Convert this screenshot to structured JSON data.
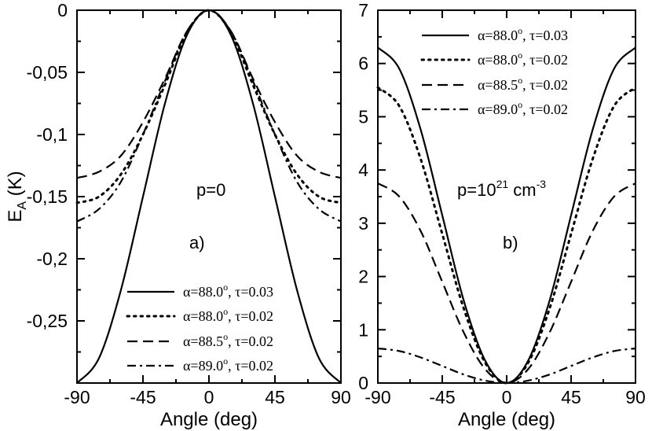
{
  "chart_data": [
    {
      "id": "a",
      "type": "line",
      "xlabel": "Angle (deg)",
      "ylabel": "E_A (K)",
      "ylabel_main": "E",
      "ylabel_sub": "A",
      "ylabel_unit": " (K)",
      "xlim": [
        -90,
        90
      ],
      "ylim": [
        -0.3,
        0
      ],
      "xticks": [
        -90,
        -45,
        0,
        45,
        90
      ],
      "xtick_labels": [
        "-90",
        "-45",
        "0",
        "45",
        "90"
      ],
      "yticks": [
        0,
        -0.05,
        -0.1,
        -0.15,
        -0.2,
        -0.25
      ],
      "ytick_labels": [
        "0",
        "-0,05",
        "-0,1",
        "-0,15",
        "-0,2",
        "-0,25"
      ],
      "annotations": [
        "p=0",
        "a)"
      ],
      "legend_position": "bottom-right",
      "series": [
        {
          "name": "α=88.0°, τ=0.03",
          "legend_main": "α=88.0",
          "legend_sup": "o",
          "legend_tail": ", τ=0.03",
          "style": "solid",
          "x": [
            -90,
            -75,
            -60,
            -45,
            -30,
            -15,
            0,
            15,
            30,
            45,
            60,
            75,
            90
          ],
          "y": [
            -0.3,
            -0.28,
            -0.225,
            -0.15,
            -0.075,
            -0.02,
            0,
            -0.02,
            -0.075,
            -0.15,
            -0.225,
            -0.28,
            -0.3
          ]
        },
        {
          "name": "α=88.0°, τ=0.02",
          "legend_main": "α=88.0",
          "legend_sup": "o",
          "legend_tail": ", τ=0.02",
          "style": "dotted",
          "x": [
            -90,
            -75,
            -60,
            -45,
            -30,
            -15,
            0,
            15,
            30,
            45,
            60,
            75,
            90
          ],
          "y": [
            -0.155,
            -0.15,
            -0.132,
            -0.1,
            -0.06,
            -0.018,
            0,
            -0.018,
            -0.06,
            -0.1,
            -0.132,
            -0.15,
            -0.155
          ]
        },
        {
          "name": "α=88.5°, τ=0.02",
          "legend_main": "α=88.5",
          "legend_sup": "o",
          "legend_tail": ", τ=0.02",
          "style": "dashed",
          "x": [
            -90,
            -75,
            -60,
            -45,
            -30,
            -15,
            0,
            15,
            30,
            45,
            60,
            75,
            90
          ],
          "y": [
            -0.135,
            -0.13,
            -0.117,
            -0.09,
            -0.055,
            -0.017,
            0,
            -0.017,
            -0.055,
            -0.09,
            -0.117,
            -0.13,
            -0.135
          ]
        },
        {
          "name": "α=89.0°, τ=0.02",
          "legend_main": "α=89.0",
          "legend_sup": "o",
          "legend_tail": ", τ=0.02",
          "style": "dashdot",
          "x": [
            -90,
            -75,
            -60,
            -45,
            -30,
            -15,
            0,
            15,
            30,
            45,
            60,
            75,
            90
          ],
          "y": [
            -0.17,
            -0.16,
            -0.138,
            -0.1,
            -0.057,
            -0.017,
            0,
            -0.017,
            -0.057,
            -0.1,
            -0.138,
            -0.16,
            -0.17
          ]
        }
      ]
    },
    {
      "id": "b",
      "type": "line",
      "xlabel": "Angle (deg)",
      "ylabel": "",
      "xlim": [
        -90,
        90
      ],
      "ylim": [
        0,
        7
      ],
      "xticks": [
        -90,
        -45,
        0,
        45,
        90
      ],
      "xtick_labels": [
        "-90",
        "-45",
        "0",
        "45",
        "90"
      ],
      "yticks": [
        0,
        1,
        2,
        3,
        4,
        5,
        6,
        7
      ],
      "ytick_labels": [
        "0",
        "1",
        "2",
        "3",
        "4",
        "5",
        "6",
        "7"
      ],
      "annotation_p_main": "p=10",
      "annotation_p_exp": "21",
      "annotation_p_unit": " cm",
      "annotation_p_unit_exp": "-3",
      "annotation_label": "b)",
      "legend_position": "top-right",
      "series": [
        {
          "name": "α=88.0°, τ=0.03",
          "legend_main": "α=88.0",
          "legend_sup": "o",
          "legend_tail": ", τ=0.03",
          "style": "solid",
          "x": [
            -90,
            -75,
            -60,
            -45,
            -30,
            -15,
            0,
            15,
            30,
            45,
            60,
            75,
            90
          ],
          "y": [
            6.3,
            5.9,
            4.75,
            3.15,
            1.55,
            0.42,
            0,
            0.42,
            1.55,
            3.15,
            4.75,
            5.9,
            6.3
          ]
        },
        {
          "name": "α=88.0°, τ=0.02",
          "legend_main": "α=88.0",
          "legend_sup": "o",
          "legend_tail": ", τ=0.02",
          "style": "dotted",
          "x": [
            -90,
            -75,
            -60,
            -45,
            -30,
            -15,
            0,
            15,
            30,
            45,
            60,
            75,
            90
          ],
          "y": [
            5.55,
            5.2,
            4.2,
            2.8,
            1.4,
            0.38,
            0,
            0.38,
            1.4,
            2.8,
            4.2,
            5.2,
            5.55
          ]
        },
        {
          "name": "α=88.5°, τ=0.02",
          "legend_main": "α=88.5",
          "legend_sup": "o",
          "legend_tail": ", τ=0.02",
          "style": "dashed",
          "x": [
            -90,
            -75,
            -60,
            -45,
            -30,
            -15,
            0,
            15,
            30,
            45,
            60,
            75,
            90
          ],
          "y": [
            3.75,
            3.5,
            2.85,
            1.9,
            0.95,
            0.26,
            0,
            0.26,
            0.95,
            1.9,
            2.85,
            3.5,
            3.75
          ]
        },
        {
          "name": "α=89.0°, τ=0.02",
          "legend_main": "α=89.0",
          "legend_sup": "o",
          "legend_tail": ", τ=0.02",
          "style": "dashdot",
          "x": [
            -90,
            -75,
            -60,
            -45,
            -30,
            -15,
            0,
            15,
            30,
            45,
            60,
            75,
            90
          ],
          "y": [
            0.65,
            0.6,
            0.48,
            0.32,
            0.16,
            0.045,
            0,
            0.045,
            0.16,
            0.32,
            0.48,
            0.6,
            0.65
          ]
        }
      ]
    }
  ]
}
